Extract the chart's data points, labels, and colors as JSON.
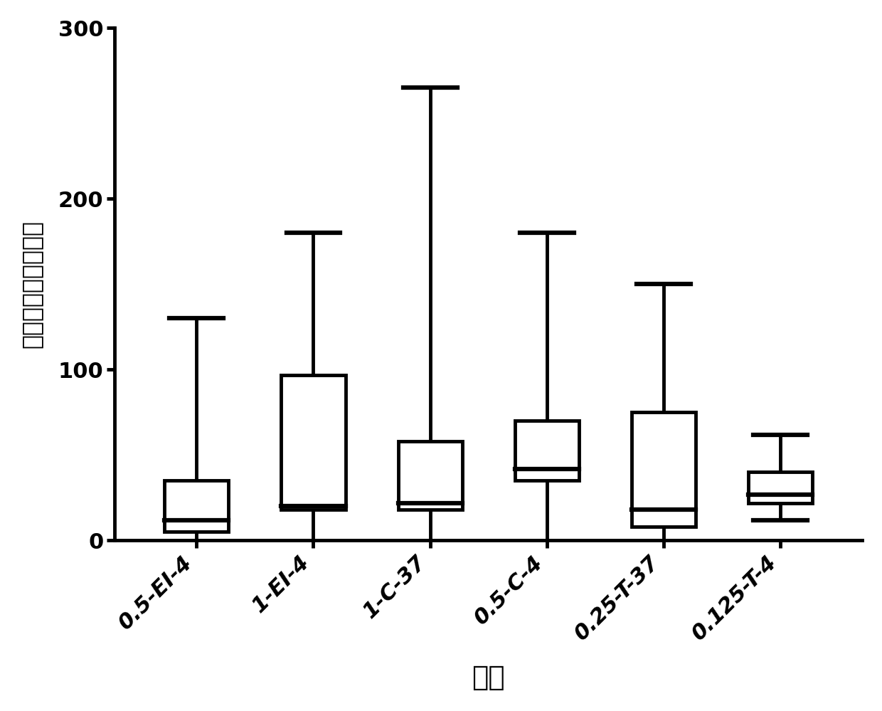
{
  "categories": [
    "0.5-EI-4",
    "1-EI-4",
    "1-C-37",
    "0.5-C-4",
    "0.25-T-37",
    "0.125-T-4"
  ],
  "box_data": [
    {
      "whisker_low": 0,
      "q1": 5,
      "median": 12,
      "q3": 35,
      "whisker_high": 130
    },
    {
      "whisker_low": 0,
      "q1": 18,
      "median": 20,
      "q3": 97,
      "whisker_high": 180
    },
    {
      "whisker_low": 0,
      "q1": 18,
      "median": 22,
      "q3": 58,
      "whisker_high": 265
    },
    {
      "whisker_low": 0,
      "q1": 35,
      "median": 42,
      "q3": 70,
      "whisker_high": 180
    },
    {
      "whisker_low": 0,
      "q1": 8,
      "median": 18,
      "q3": 75,
      "whisker_high": 150
    },
    {
      "whisker_low": 12,
      "q1": 22,
      "median": 27,
      "q3": 40,
      "whisker_high": 62
    }
  ],
  "ylabel": "贴壁细胞个数（个）",
  "xlabel": "组别",
  "ylim": [
    0,
    300
  ],
  "yticks": [
    0,
    100,
    200,
    300
  ],
  "box_color": "#ffffff",
  "box_edge_color": "#000000",
  "median_color": "#000000",
  "whisker_color": "#000000",
  "cap_color": "#000000",
  "background_color": "#ffffff",
  "linewidth": 3.5,
  "box_width": 0.55,
  "ylabel_fontsize": 24,
  "xlabel_fontsize": 28,
  "tick_fontsize": 22,
  "xtick_fontsize": 22
}
